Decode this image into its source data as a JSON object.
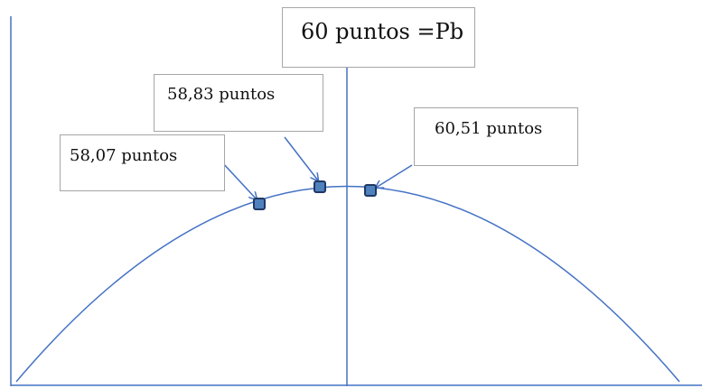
{
  "colors": {
    "line": "#4472c4",
    "marker_fill": "#4f81bd",
    "marker_edge": "#1f3864",
    "box_border": "#a6a6a6"
  },
  "labels": {
    "pb": "60 puntos =Pb",
    "left_point": "58,07 puntos",
    "mid_point": "58,83 puntos",
    "right_point": "60,51 puntos"
  }
}
